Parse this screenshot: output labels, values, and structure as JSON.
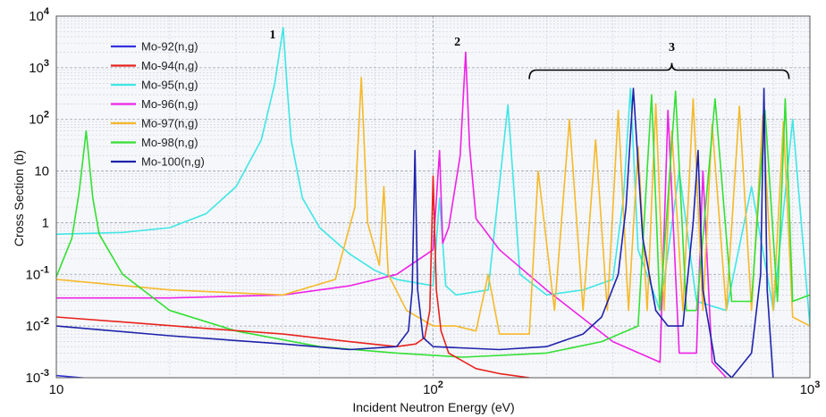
{
  "chart_data": {
    "type": "line",
    "title": "",
    "xlabel": "Incident Neutron Energy (eV)",
    "ylabel": "Cross Section (b)",
    "xscale": "log",
    "yscale": "log",
    "xlim": [
      10,
      1000
    ],
    "ylim": [
      0.001,
      10000
    ],
    "grid": true,
    "legend_position": "top-left",
    "x_ticks": [
      {
        "value": 10,
        "base": "10",
        "exp": ""
      },
      {
        "value": 100,
        "base": "10",
        "exp": "2"
      },
      {
        "value": 1000,
        "base": "10",
        "exp": "3"
      }
    ],
    "y_ticks": [
      {
        "value": 10000,
        "base": "10",
        "exp": "4"
      },
      {
        "value": 1000,
        "base": "10",
        "exp": "3"
      },
      {
        "value": 100,
        "base": "10",
        "exp": "2"
      },
      {
        "value": 10,
        "base": "10",
        "exp": ""
      },
      {
        "value": 1,
        "base": "1",
        "exp": ""
      },
      {
        "value": 0.1,
        "base": "10",
        "exp": "-1"
      },
      {
        "value": 0.01,
        "base": "10",
        "exp": "-2"
      },
      {
        "value": 0.001,
        "base": "10",
        "exp": "-3"
      }
    ],
    "series": [
      {
        "name": "Mo-92(n,g)",
        "color": "#3333dd",
        "x": [
          10,
          15,
          25,
          40,
          60,
          90,
          140,
          250,
          400,
          700,
          1000
        ],
        "y": [
          0.0011,
          0.00085,
          0.0007,
          0.0006,
          0.00055,
          0.0005,
          0.00048,
          0.00047,
          0.00046,
          0.00046,
          0.00046
        ]
      },
      {
        "name": "Mo-94(n,g)",
        "color": "#e8221c",
        "x": [
          10,
          15,
          25,
          40,
          60,
          80,
          90,
          95,
          98,
          100,
          102,
          105,
          110,
          130,
          150,
          180
        ],
        "y": [
          0.015,
          0.012,
          0.009,
          0.007,
          0.005,
          0.004,
          0.0045,
          0.006,
          0.02,
          8,
          0.05,
          0.008,
          0.003,
          0.0015,
          0.0012,
          0.001
        ]
      },
      {
        "name": "Mo-95(n,g)",
        "color": "#3fe6e6",
        "x": [
          10,
          15,
          20,
          25,
          30,
          35,
          38,
          40,
          41,
          42,
          45,
          50,
          60,
          70,
          80,
          100,
          104,
          108,
          115,
          140,
          158,
          170,
          200,
          250,
          300,
          320,
          334,
          350,
          400,
          450,
          500,
          600,
          700,
          800,
          900,
          1000
        ],
        "y": [
          0.6,
          0.65,
          0.8,
          1.5,
          5,
          40,
          500,
          6000,
          400,
          40,
          3,
          0.8,
          0.25,
          0.12,
          0.08,
          0.06,
          3,
          0.06,
          0.04,
          0.05,
          190,
          0.1,
          0.04,
          0.05,
          0.08,
          3,
          400,
          0.3,
          0.02,
          10,
          0.03,
          0.02,
          5,
          0.02,
          100,
          0.01
        ]
      },
      {
        "name": "Mo-96(n,g)",
        "color": "#ee22e6",
        "x": [
          10,
          20,
          40,
          60,
          80,
          100,
          104,
          106,
          110,
          118,
          122,
          125,
          130,
          150,
          200,
          300,
          400,
          420,
          450,
          500,
          520,
          550,
          600,
          800,
          1000
        ],
        "y": [
          0.035,
          0.035,
          0.04,
          0.06,
          0.1,
          0.3,
          25,
          0.4,
          0.8,
          20,
          2000,
          30,
          1.2,
          0.3,
          0.05,
          0.005,
          0.002,
          150,
          0.003,
          0.003,
          10,
          0.002,
          0.001,
          0.0008,
          0.0007
        ]
      },
      {
        "name": "Mo-97(n,g)",
        "color": "#f5b92a",
        "x": [
          10,
          20,
          40,
          55,
          62,
          64.5,
          67,
          72,
          74,
          76,
          85,
          100,
          115,
          130,
          140,
          150,
          165,
          180,
          190,
          210,
          230,
          250,
          270,
          290,
          310,
          330,
          350,
          370,
          390,
          410,
          430,
          460,
          490,
          520,
          550,
          600,
          650,
          700,
          750,
          800,
          850,
          900,
          1000
        ],
        "y": [
          0.08,
          0.05,
          0.04,
          0.08,
          2,
          650,
          1,
          0.15,
          5,
          0.1,
          0.02,
          0.01,
          0.01,
          0.008,
          0.1,
          0.007,
          0.007,
          0.007,
          10,
          0.02,
          100,
          0.02,
          40,
          0.02,
          150,
          0.02,
          30,
          0.02,
          200,
          0.02,
          60,
          0.02,
          250,
          0.02,
          80,
          0.02,
          180,
          0.02,
          120,
          0.02,
          90,
          0.015,
          0.01
        ]
      },
      {
        "name": "Mo-98(n,g)",
        "color": "#33e033",
        "x": [
          10,
          11,
          11.5,
          12,
          12.5,
          13,
          15,
          20,
          30,
          50,
          80,
          120,
          200,
          280,
          350,
          380,
          400,
          440,
          470,
          500,
          560,
          620,
          700,
          760,
          820,
          860,
          900,
          1000
        ],
        "y": [
          0.09,
          0.5,
          4,
          60,
          3,
          0.6,
          0.1,
          0.02,
          0.008,
          0.004,
          0.003,
          0.0025,
          0.003,
          0.005,
          0.01,
          300,
          0.02,
          350,
          0.02,
          0.02,
          250,
          0.03,
          0.03,
          150,
          0.03,
          250,
          0.03,
          0.04
        ]
      },
      {
        "name": "Mo-100(n,g)",
        "color": "#1f22aa",
        "x": [
          10,
          20,
          40,
          60,
          80,
          86,
          88,
          89.5,
          91,
          94,
          100,
          150,
          200,
          250,
          280,
          310,
          325,
          340,
          360,
          390,
          420,
          460,
          490,
          505,
          520,
          560,
          620,
          700,
          740,
          755,
          770,
          800,
          1000
        ],
        "y": [
          0.01,
          0.0065,
          0.0045,
          0.0035,
          0.004,
          0.008,
          0.05,
          25,
          0.05,
          0.006,
          0.004,
          0.0035,
          0.004,
          0.007,
          0.015,
          0.1,
          2,
          400,
          0.5,
          0.02,
          0.01,
          0.01,
          1,
          25,
          0.05,
          0.002,
          0.001,
          0.003,
          0.1,
          400,
          0.05,
          0.0008,
          0.0005
        ]
      }
    ],
    "annotations": [
      {
        "text": "1",
        "x": 37.5,
        "y": 3700
      },
      {
        "text": "2",
        "x": 116,
        "y": 2700
      },
      {
        "text": "3",
        "x": 430,
        "y": 2100
      }
    ],
    "bracket": {
      "x_start": 180,
      "x_end": 880,
      "y": 900,
      "x_mid": 430
    }
  }
}
